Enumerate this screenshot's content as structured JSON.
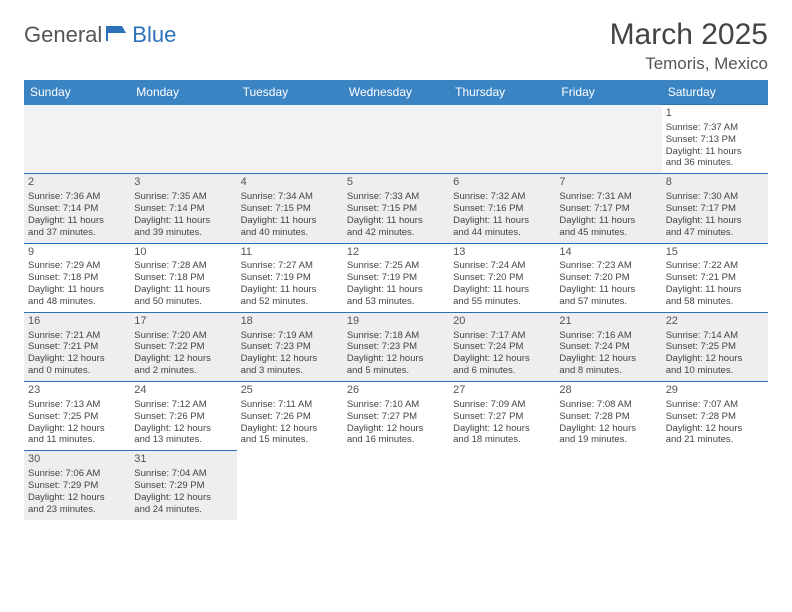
{
  "logo": {
    "part1": "General",
    "part2": "Blue"
  },
  "title": "March 2025",
  "location": "Temoris, Mexico",
  "colors": {
    "header_bg": "#3b84c4",
    "header_fg": "#ffffff",
    "shade_bg": "#eceeef",
    "rule": "#2d72b8",
    "logo_accent": "#2d72b8"
  },
  "weekdays": [
    "Sunday",
    "Monday",
    "Tuesday",
    "Wednesday",
    "Thursday",
    "Friday",
    "Saturday"
  ],
  "weeks": [
    [
      null,
      null,
      null,
      null,
      null,
      null,
      {
        "n": "1",
        "sr": "Sunrise: 7:37 AM",
        "ss": "Sunset: 7:13 PM",
        "d1": "Daylight: 11 hours",
        "d2": "and 36 minutes."
      }
    ],
    [
      {
        "n": "2",
        "sr": "Sunrise: 7:36 AM",
        "ss": "Sunset: 7:14 PM",
        "d1": "Daylight: 11 hours",
        "d2": "and 37 minutes."
      },
      {
        "n": "3",
        "sr": "Sunrise: 7:35 AM",
        "ss": "Sunset: 7:14 PM",
        "d1": "Daylight: 11 hours",
        "d2": "and 39 minutes."
      },
      {
        "n": "4",
        "sr": "Sunrise: 7:34 AM",
        "ss": "Sunset: 7:15 PM",
        "d1": "Daylight: 11 hours",
        "d2": "and 40 minutes."
      },
      {
        "n": "5",
        "sr": "Sunrise: 7:33 AM",
        "ss": "Sunset: 7:15 PM",
        "d1": "Daylight: 11 hours",
        "d2": "and 42 minutes."
      },
      {
        "n": "6",
        "sr": "Sunrise: 7:32 AM",
        "ss": "Sunset: 7:16 PM",
        "d1": "Daylight: 11 hours",
        "d2": "and 44 minutes."
      },
      {
        "n": "7",
        "sr": "Sunrise: 7:31 AM",
        "ss": "Sunset: 7:17 PM",
        "d1": "Daylight: 11 hours",
        "d2": "and 45 minutes."
      },
      {
        "n": "8",
        "sr": "Sunrise: 7:30 AM",
        "ss": "Sunset: 7:17 PM",
        "d1": "Daylight: 11 hours",
        "d2": "and 47 minutes."
      }
    ],
    [
      {
        "n": "9",
        "sr": "Sunrise: 7:29 AM",
        "ss": "Sunset: 7:18 PM",
        "d1": "Daylight: 11 hours",
        "d2": "and 48 minutes."
      },
      {
        "n": "10",
        "sr": "Sunrise: 7:28 AM",
        "ss": "Sunset: 7:18 PM",
        "d1": "Daylight: 11 hours",
        "d2": "and 50 minutes."
      },
      {
        "n": "11",
        "sr": "Sunrise: 7:27 AM",
        "ss": "Sunset: 7:19 PM",
        "d1": "Daylight: 11 hours",
        "d2": "and 52 minutes."
      },
      {
        "n": "12",
        "sr": "Sunrise: 7:25 AM",
        "ss": "Sunset: 7:19 PM",
        "d1": "Daylight: 11 hours",
        "d2": "and 53 minutes."
      },
      {
        "n": "13",
        "sr": "Sunrise: 7:24 AM",
        "ss": "Sunset: 7:20 PM",
        "d1": "Daylight: 11 hours",
        "d2": "and 55 minutes."
      },
      {
        "n": "14",
        "sr": "Sunrise: 7:23 AM",
        "ss": "Sunset: 7:20 PM",
        "d1": "Daylight: 11 hours",
        "d2": "and 57 minutes."
      },
      {
        "n": "15",
        "sr": "Sunrise: 7:22 AM",
        "ss": "Sunset: 7:21 PM",
        "d1": "Daylight: 11 hours",
        "d2": "and 58 minutes."
      }
    ],
    [
      {
        "n": "16",
        "sr": "Sunrise: 7:21 AM",
        "ss": "Sunset: 7:21 PM",
        "d1": "Daylight: 12 hours",
        "d2": "and 0 minutes."
      },
      {
        "n": "17",
        "sr": "Sunrise: 7:20 AM",
        "ss": "Sunset: 7:22 PM",
        "d1": "Daylight: 12 hours",
        "d2": "and 2 minutes."
      },
      {
        "n": "18",
        "sr": "Sunrise: 7:19 AM",
        "ss": "Sunset: 7:23 PM",
        "d1": "Daylight: 12 hours",
        "d2": "and 3 minutes."
      },
      {
        "n": "19",
        "sr": "Sunrise: 7:18 AM",
        "ss": "Sunset: 7:23 PM",
        "d1": "Daylight: 12 hours",
        "d2": "and 5 minutes."
      },
      {
        "n": "20",
        "sr": "Sunrise: 7:17 AM",
        "ss": "Sunset: 7:24 PM",
        "d1": "Daylight: 12 hours",
        "d2": "and 6 minutes."
      },
      {
        "n": "21",
        "sr": "Sunrise: 7:16 AM",
        "ss": "Sunset: 7:24 PM",
        "d1": "Daylight: 12 hours",
        "d2": "and 8 minutes."
      },
      {
        "n": "22",
        "sr": "Sunrise: 7:14 AM",
        "ss": "Sunset: 7:25 PM",
        "d1": "Daylight: 12 hours",
        "d2": "and 10 minutes."
      }
    ],
    [
      {
        "n": "23",
        "sr": "Sunrise: 7:13 AM",
        "ss": "Sunset: 7:25 PM",
        "d1": "Daylight: 12 hours",
        "d2": "and 11 minutes."
      },
      {
        "n": "24",
        "sr": "Sunrise: 7:12 AM",
        "ss": "Sunset: 7:26 PM",
        "d1": "Daylight: 12 hours",
        "d2": "and 13 minutes."
      },
      {
        "n": "25",
        "sr": "Sunrise: 7:11 AM",
        "ss": "Sunset: 7:26 PM",
        "d1": "Daylight: 12 hours",
        "d2": "and 15 minutes."
      },
      {
        "n": "26",
        "sr": "Sunrise: 7:10 AM",
        "ss": "Sunset: 7:27 PM",
        "d1": "Daylight: 12 hours",
        "d2": "and 16 minutes."
      },
      {
        "n": "27",
        "sr": "Sunrise: 7:09 AM",
        "ss": "Sunset: 7:27 PM",
        "d1": "Daylight: 12 hours",
        "d2": "and 18 minutes."
      },
      {
        "n": "28",
        "sr": "Sunrise: 7:08 AM",
        "ss": "Sunset: 7:28 PM",
        "d1": "Daylight: 12 hours",
        "d2": "and 19 minutes."
      },
      {
        "n": "29",
        "sr": "Sunrise: 7:07 AM",
        "ss": "Sunset: 7:28 PM",
        "d1": "Daylight: 12 hours",
        "d2": "and 21 minutes."
      }
    ],
    [
      {
        "n": "30",
        "sr": "Sunrise: 7:06 AM",
        "ss": "Sunset: 7:29 PM",
        "d1": "Daylight: 12 hours",
        "d2": "and 23 minutes."
      },
      {
        "n": "31",
        "sr": "Sunrise: 7:04 AM",
        "ss": "Sunset: 7:29 PM",
        "d1": "Daylight: 12 hours",
        "d2": "and 24 minutes."
      },
      null,
      null,
      null,
      null,
      null
    ]
  ]
}
